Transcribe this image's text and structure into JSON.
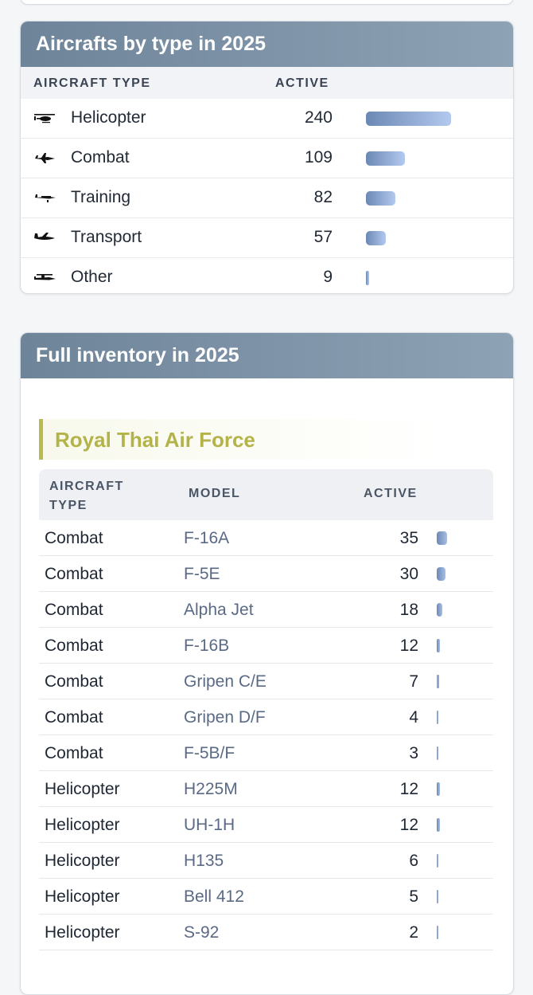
{
  "type_card": {
    "title": "Aircrafts by type in 2025",
    "col_type": "AIRCRAFT TYPE",
    "col_active": "ACTIVE",
    "rows": [
      {
        "icon": "helicopter-icon",
        "type": "Helicopter",
        "active": "240",
        "share": 1.0
      },
      {
        "icon": "combat-jet-icon",
        "type": "Combat",
        "active": "109",
        "share": 0.454
      },
      {
        "icon": "training-plane-icon",
        "type": "Training",
        "active": "82",
        "share": 0.342
      },
      {
        "icon": "transport-plane-icon",
        "type": "Transport",
        "active": "57",
        "share": 0.238
      },
      {
        "icon": "other-aircraft-icon",
        "type": "Other",
        "active": "9",
        "share": 0.0375
      }
    ]
  },
  "inventory_card": {
    "title": "Full inventory in 2025",
    "section": "Royal Thai Air Force",
    "col_type": "AIRCRAFT\nTYPE",
    "col_model": "MODEL",
    "col_active": "ACTIVE",
    "rows": [
      {
        "type": "Combat",
        "model": "F-16A",
        "active": "35",
        "share": 1.0
      },
      {
        "type": "Combat",
        "model": "F-5E",
        "active": "30",
        "share": 0.857
      },
      {
        "type": "Combat",
        "model": "Alpha Jet",
        "active": "18",
        "share": 0.514
      },
      {
        "type": "Combat",
        "model": "F-16B",
        "active": "12",
        "share": 0.343
      },
      {
        "type": "Combat",
        "model": "Gripen C/E",
        "active": "7",
        "share": 0.2
      },
      {
        "type": "Combat",
        "model": "Gripen D/F",
        "active": "4",
        "share": 0.114
      },
      {
        "type": "Combat",
        "model": "F-5B/F",
        "active": "3",
        "share": 0.086
      },
      {
        "type": "Helicopter",
        "model": "H225M",
        "active": "12",
        "share": 0.343
      },
      {
        "type": "Helicopter",
        "model": "UH-1H",
        "active": "12",
        "share": 0.343
      },
      {
        "type": "Helicopter",
        "model": "H135",
        "active": "6",
        "share": 0.171
      },
      {
        "type": "Helicopter",
        "model": "Bell 412",
        "active": "5",
        "share": 0.143
      },
      {
        "type": "Helicopter",
        "model": "S-92",
        "active": "2",
        "share": 0.057
      }
    ]
  }
}
